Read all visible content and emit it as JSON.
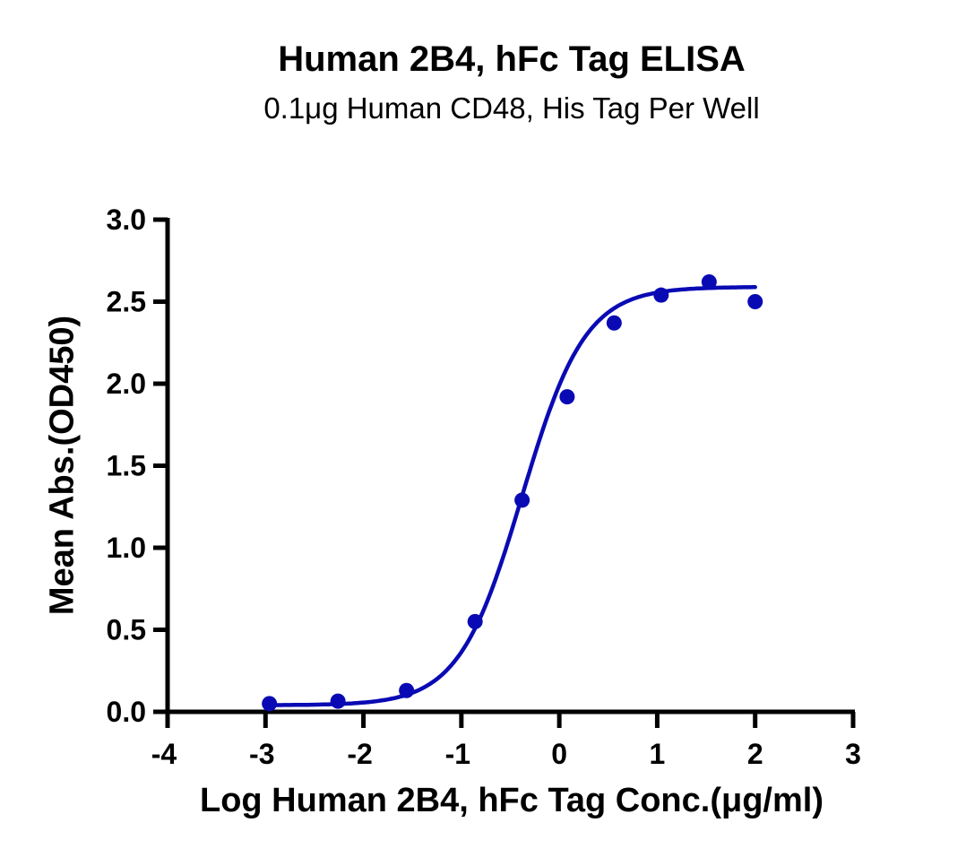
{
  "chart_data": {
    "type": "scatter",
    "title": "Human 2B4, hFc Tag ELISA",
    "subtitle": "0.1μg Human CD48, His Tag Per Well",
    "xlabel": "Log Human 2B4, hFc Tag Conc.(μg/ml)",
    "ylabel": "Mean Abs.(OD450)",
    "xlim": [
      -4,
      3
    ],
    "ylim": [
      0,
      3.0
    ],
    "x_ticks": [
      "-4",
      "-3",
      "-2",
      "-1",
      "0",
      "1",
      "2",
      "3"
    ],
    "y_ticks": [
      "0.0",
      "0.5",
      "1.0",
      "1.5",
      "2.0",
      "2.5",
      "3.0"
    ],
    "grid": false,
    "legend": null,
    "series": [
      {
        "name": "Human 2B4, hFc Tag",
        "color": "#0a0ab4",
        "x": [
          -2.96,
          -2.26,
          -1.56,
          -0.86,
          -0.38,
          0.08,
          0.56,
          1.04,
          1.53,
          2.0
        ],
        "y": [
          0.05,
          0.065,
          0.13,
          0.55,
          1.29,
          1.92,
          2.37,
          2.54,
          2.62,
          2.5
        ],
        "fit": {
          "type": "4PL sigmoidal",
          "bottom": 0.04,
          "top": 2.59,
          "logEC50": -0.38,
          "hill": 1.35,
          "x_range": [
            -2.96,
            2.0
          ]
        }
      }
    ]
  }
}
